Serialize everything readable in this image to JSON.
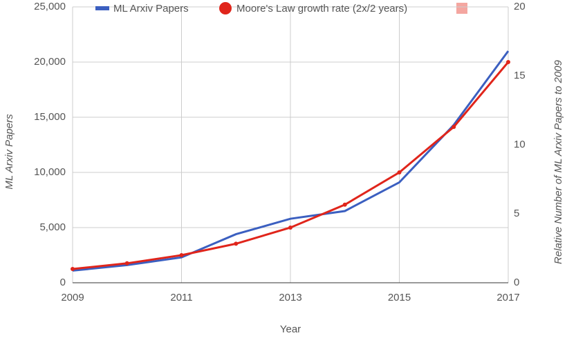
{
  "chart_data": {
    "type": "line",
    "x_label": "Year",
    "y_label": "ML Arxiv Papers",
    "y2_label": "Relative Number of ML Arxiv Papers  to 2009",
    "x": [
      2009,
      2010,
      2011,
      2012,
      2013,
      2014,
      2015,
      2016,
      2017
    ],
    "xlim": [
      2009,
      2017
    ],
    "xticks": [
      2009,
      2011,
      2013,
      2015,
      2017
    ],
    "ylim": [
      0,
      25000
    ],
    "yticks": [
      0,
      {
        "value": 5000,
        "label": "5,000"
      },
      {
        "value": 10000,
        "label": "10,000"
      },
      {
        "value": 15000,
        "label": "15,000"
      },
      {
        "value": 20000,
        "label": "20,000"
      },
      {
        "value": 25000,
        "label": "25,000"
      }
    ],
    "y2lim": [
      0,
      20
    ],
    "y2ticks": [
      0,
      5,
      10,
      15,
      20
    ],
    "grid": true,
    "series": [
      {
        "name": "ML Arxiv Papers",
        "color": "#3b5fc0",
        "values": [
          1100,
          1600,
          2300,
          4400,
          5800,
          6500,
          9100,
          14300,
          21000
        ]
      },
      {
        "name": "Moore's Law growth rate (2x/2 years)",
        "color": "#e0251b",
        "axis": "y2",
        "markers": true,
        "values": [
          1,
          1.41,
          2,
          2.83,
          4,
          5.66,
          8,
          11.3,
          16
        ]
      }
    ]
  }
}
